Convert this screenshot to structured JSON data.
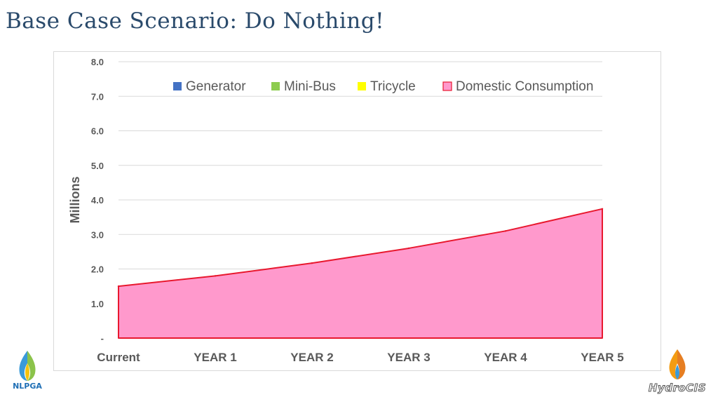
{
  "slide": {
    "title": "Base Case Scenario: Do Nothing!",
    "logo_left_text": "NLPGA",
    "logo_right_text": "HydroCIS"
  },
  "chart_data": {
    "type": "area",
    "ylabel": "Millions",
    "xlabel": "",
    "categories": [
      "Current",
      "YEAR 1",
      "YEAR 2",
      "YEAR 3",
      "YEAR 4",
      "YEAR 5"
    ],
    "ylim": [
      0,
      8
    ],
    "yticks": [
      {
        "value": 0,
        "label": "-"
      },
      {
        "value": 1,
        "label": "1.0"
      },
      {
        "value": 2,
        "label": "2.0"
      },
      {
        "value": 3,
        "label": "3.0"
      },
      {
        "value": 4,
        "label": "4.0"
      },
      {
        "value": 5,
        "label": "5.0"
      },
      {
        "value": 6,
        "label": "6.0"
      },
      {
        "value": 7,
        "label": "7.0"
      },
      {
        "value": 8,
        "label": "8.0"
      }
    ],
    "grid": true,
    "legend_position": "top",
    "legend": [
      {
        "name": "Generator",
        "color": "#4472c4"
      },
      {
        "name": "Mini-Bus",
        "color": "#8dcc4f"
      },
      {
        "name": "Tricycle",
        "color": "#ffff00"
      },
      {
        "name": "Domestic Consumption",
        "color": "#ff99cc",
        "border": "#e8182e"
      }
    ],
    "series": [
      {
        "name": "Generator",
        "values": [
          0,
          0,
          0,
          0,
          0,
          0
        ],
        "color": "#4472c4"
      },
      {
        "name": "Mini-Bus",
        "values": [
          0,
          0,
          0,
          0,
          0,
          0
        ],
        "color": "#8dcc4f"
      },
      {
        "name": "Tricycle",
        "values": [
          0,
          0,
          0,
          0,
          0,
          0
        ],
        "color": "#ffff00"
      },
      {
        "name": "Domestic Consumption",
        "values": [
          1.5,
          1.8,
          2.17,
          2.6,
          3.1,
          3.74
        ],
        "color": "#ff99cc",
        "border": "#e8182e"
      }
    ]
  }
}
